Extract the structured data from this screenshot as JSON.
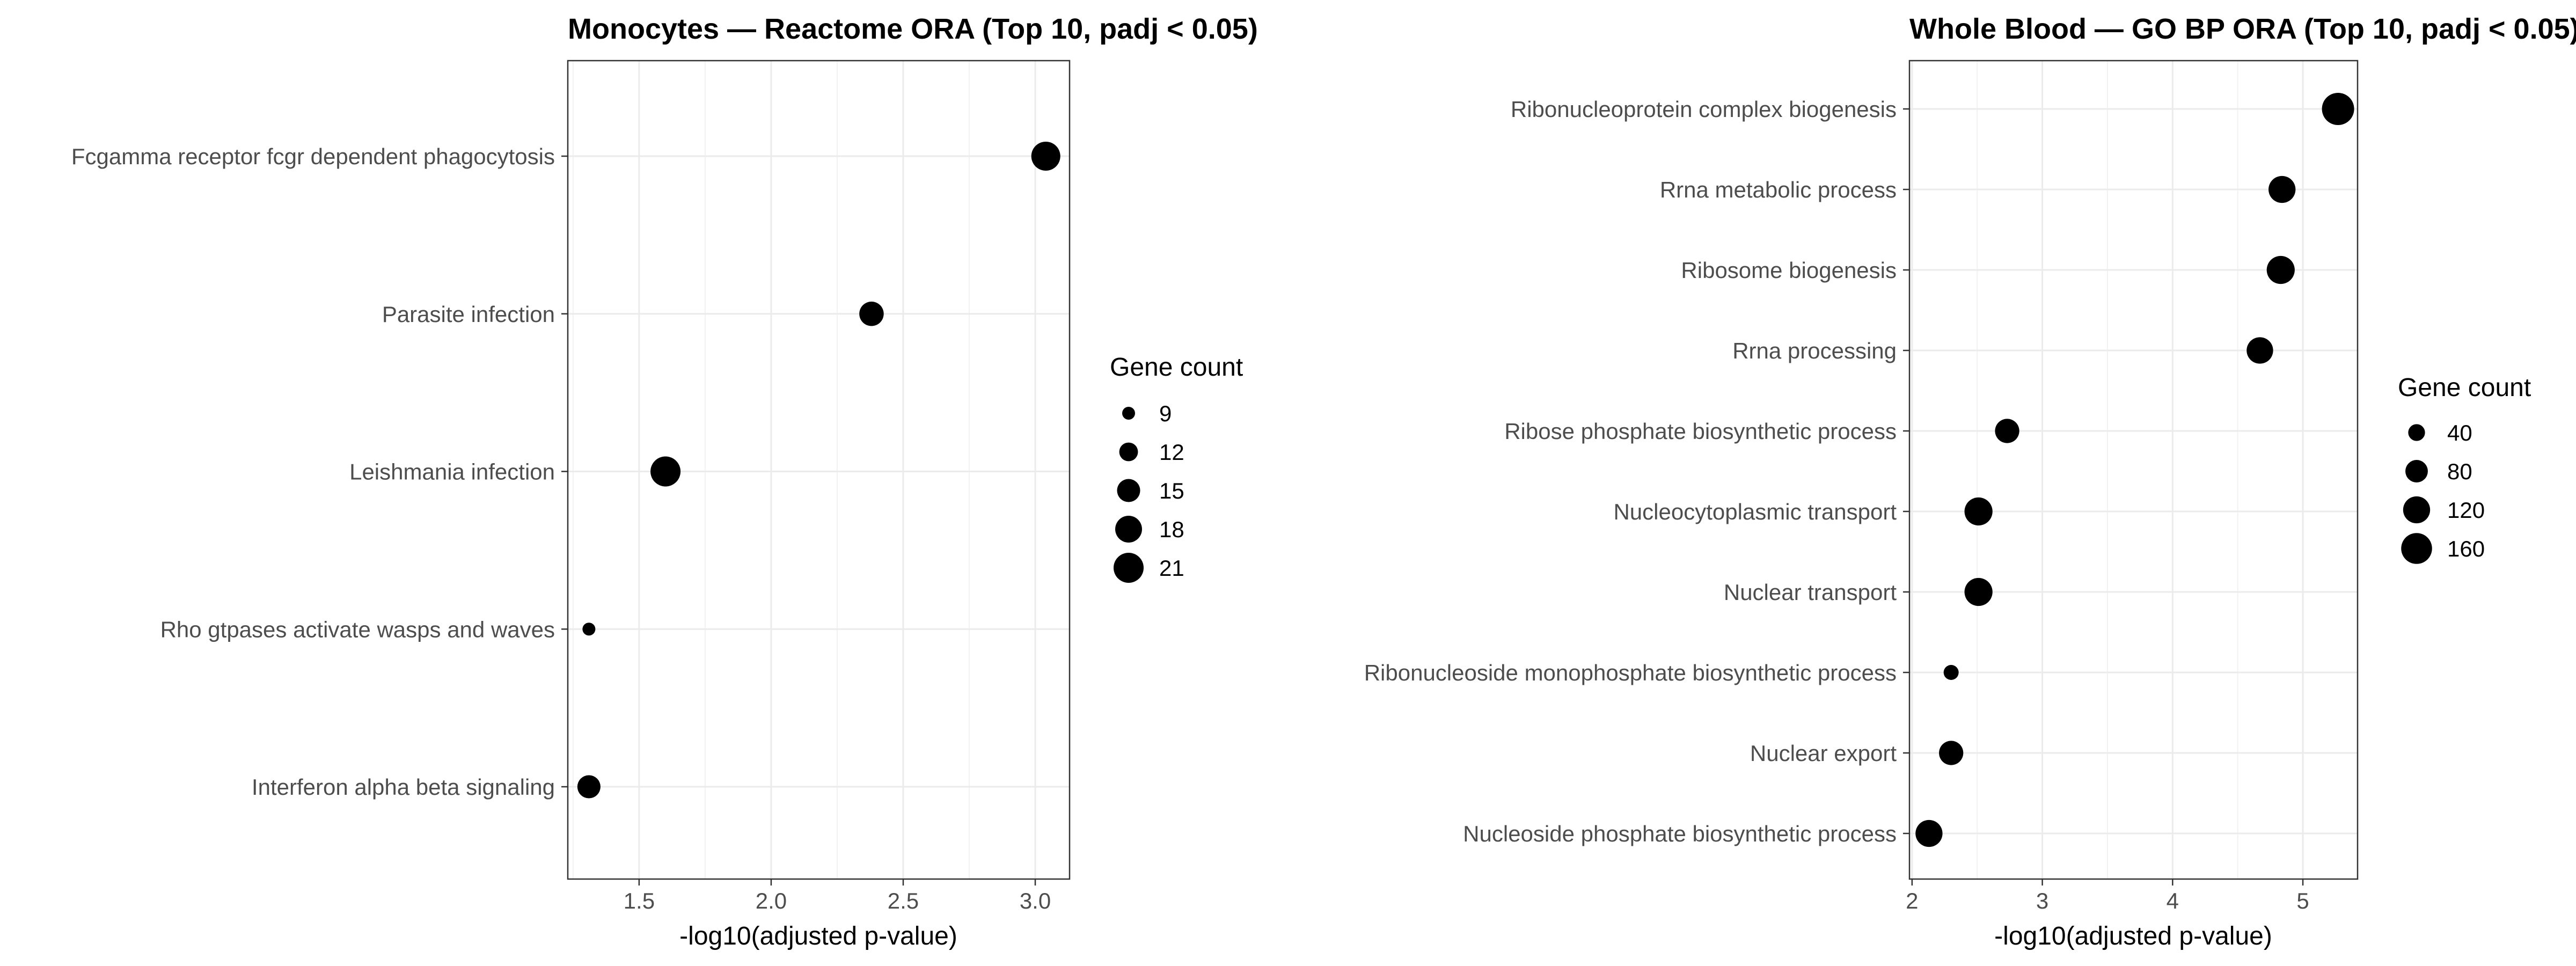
{
  "chart_data": [
    {
      "type": "scatter",
      "title": "Monocytes — Reactome ORA (Top 10, padj < 0.05)",
      "xlabel": "-log10(adjusted p-value)",
      "ylabel": "",
      "xlim": [
        1.23,
        3.13
      ],
      "xticks": [
        1.5,
        2.0,
        2.5,
        3.0
      ],
      "xtick_labels": [
        "1.5",
        "2.0",
        "2.5",
        "3.0"
      ],
      "grid": true,
      "legend": {
        "title": "Gene count",
        "placement": "right",
        "values": [
          9,
          12,
          15,
          18,
          21
        ],
        "labels": [
          "9",
          "12",
          "15",
          "18",
          "21"
        ]
      },
      "size_range": [
        9,
        21
      ],
      "points": [
        {
          "term": "Fcgamma receptor fcgr dependent phagocytosis",
          "x": 3.04,
          "count": 20
        },
        {
          "term": "Parasite infection",
          "x": 2.38,
          "count": 16
        },
        {
          "term": "Leishmania infection",
          "x": 1.6,
          "count": 21
        },
        {
          "term": "Rho gtpases activate wasps and waves",
          "x": 1.31,
          "count": 9
        },
        {
          "term": "Interferon alpha beta signaling",
          "x": 1.31,
          "count": 15
        }
      ]
    },
    {
      "type": "scatter",
      "title": "Whole Blood — GO BP ORA (Top 10, padj < 0.05)",
      "xlabel": "-log10(adjusted p-value)",
      "ylabel": "",
      "xlim": [
        1.98,
        5.42
      ],
      "xticks": [
        2,
        3,
        4,
        5
      ],
      "xtick_labels": [
        "2",
        "3",
        "4",
        "5"
      ],
      "grid": true,
      "legend": {
        "title": "Gene count",
        "placement": "right",
        "values": [
          40,
          80,
          120,
          160
        ],
        "labels": [
          "40",
          "80",
          "120",
          "160"
        ]
      },
      "size_range": [
        30,
        175
      ],
      "points": [
        {
          "term": "Ribonucleoprotein complex biogenesis",
          "x": 5.27,
          "count": 175
        },
        {
          "term": "Rrna metabolic process",
          "x": 4.84,
          "count": 120
        },
        {
          "term": "Ribosome biogenesis",
          "x": 4.83,
          "count": 130
        },
        {
          "term": "Rrna processing",
          "x": 4.67,
          "count": 115
        },
        {
          "term": "Ribose phosphate biosynthetic process",
          "x": 2.73,
          "count": 95
        },
        {
          "term": "Nucleocytoplasmic transport",
          "x": 2.51,
          "count": 130
        },
        {
          "term": "Nuclear transport",
          "x": 2.51,
          "count": 130
        },
        {
          "term": "Ribonucleoside monophosphate biosynthetic process",
          "x": 2.3,
          "count": 30
        },
        {
          "term": "Nuclear export",
          "x": 2.3,
          "count": 95
        },
        {
          "term": "Nucleoside phosphate biosynthetic process",
          "x": 2.13,
          "count": 120
        }
      ]
    }
  ]
}
